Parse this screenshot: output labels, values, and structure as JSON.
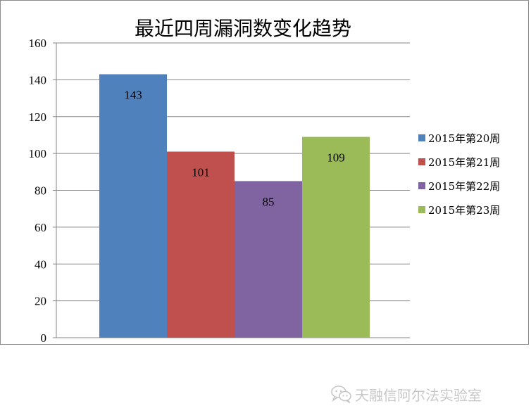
{
  "chart_data": {
    "type": "bar",
    "title": "最近四周漏洞数变化趋势",
    "xlabel": "",
    "ylabel": "",
    "ylim": [
      0,
      160
    ],
    "yticks": [
      0,
      20,
      40,
      60,
      80,
      100,
      120,
      140,
      160
    ],
    "grid": true,
    "legend_position": "right",
    "series": [
      {
        "name": "2015年第20周",
        "values": [
          143
        ],
        "color": "#4f81bd"
      },
      {
        "name": "2015年第21周",
        "values": [
          101
        ],
        "color": "#c0504d"
      },
      {
        "name": "2015年第22周",
        "values": [
          85
        ],
        "color": "#8064a2"
      },
      {
        "name": "2015年第23周",
        "values": [
          109
        ],
        "color": "#9bbb59"
      }
    ],
    "data_labels": true
  },
  "watermark": {
    "icon": "wechat-icon",
    "text": "天融信阿尔法实验室",
    "color": "#c8c8c8"
  }
}
